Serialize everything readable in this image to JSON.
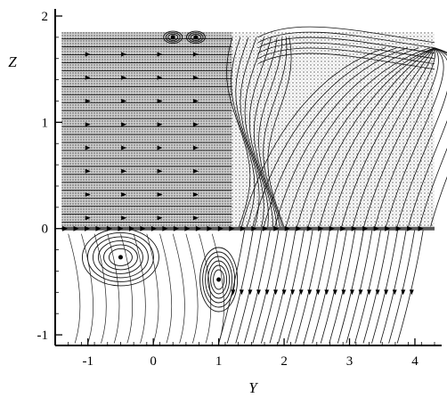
{
  "chart_data": {
    "type": "streamline",
    "xlabel": "Y",
    "ylabel": "Z",
    "xlim": [
      -1.5,
      4.3
    ],
    "ylim": [
      -1.1,
      2.0
    ],
    "x_ticks": [
      {
        "value": -1,
        "label": "-1"
      },
      {
        "value": 0,
        "label": "0"
      },
      {
        "value": 1,
        "label": "1"
      },
      {
        "value": 2,
        "label": "2"
      },
      {
        "value": 3,
        "label": "3"
      },
      {
        "value": 4,
        "label": "4"
      }
    ],
    "y_ticks": [
      {
        "value": -1,
        "label": "-1"
      },
      {
        "value": 0,
        "label": "0"
      },
      {
        "value": 1,
        "label": "1"
      },
      {
        "value": 2,
        "label": "2"
      }
    ],
    "regions": {
      "upper_left_block": {
        "y_range": [
          -1.4,
          1.2
        ],
        "z_range": [
          0.0,
          1.85
        ]
      },
      "upper_right_field": {
        "y_range": [
          1.2,
          4.3
        ],
        "z_range": [
          0.0,
          1.85
        ]
      },
      "lower_field": {
        "y_range": [
          -1.4,
          4.3
        ],
        "z_range": [
          -1.1,
          0.0
        ]
      }
    },
    "vortices": [
      {
        "y": -0.5,
        "z": -0.27
      },
      {
        "y": 1.0,
        "z": -0.48
      },
      {
        "y": 0.3,
        "z": 1.8
      },
      {
        "y": 0.65,
        "z": 1.8
      }
    ],
    "interface_z": 0.0,
    "grid": false
  }
}
